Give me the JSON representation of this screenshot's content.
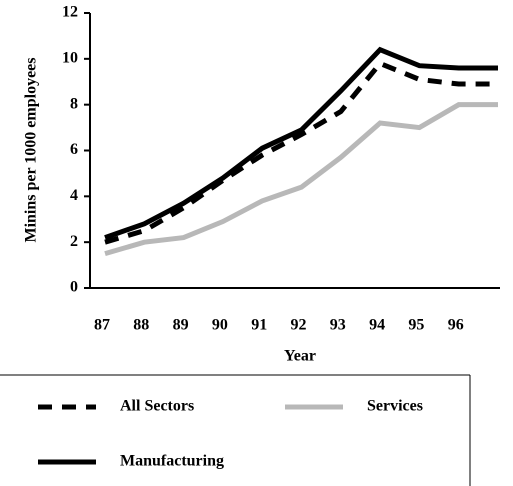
{
  "chart_data": {
    "type": "line",
    "y_label": "Minins per 1000 employees",
    "x_label": "Year",
    "categories": [
      "87",
      "88",
      "89",
      "90",
      "91",
      "92",
      "93",
      "94",
      "95",
      "96",
      null
    ],
    "series": [
      {
        "name": "All Sectors",
        "color": "#000000",
        "dash": true,
        "values": [
          2.0,
          2.5,
          3.5,
          4.7,
          5.8,
          6.7,
          7.7,
          9.8,
          9.1,
          8.9,
          8.9
        ]
      },
      {
        "name": "Services",
        "color": "#b8b8b8",
        "dash": false,
        "values": [
          1.5,
          2.0,
          2.2,
          2.9,
          3.8,
          4.4,
          5.7,
          7.2,
          7.0,
          8.0,
          8.0
        ]
      },
      {
        "name": "Manufacturing",
        "color": "#000000",
        "dash": false,
        "values": [
          2.2,
          2.8,
          3.7,
          4.8,
          6.1,
          6.9,
          8.6,
          10.4,
          9.7,
          9.6,
          9.6
        ]
      }
    ],
    "ylim": [
      0,
      12
    ],
    "yticks": [
      0,
      2,
      4,
      6,
      8,
      10,
      12
    ]
  }
}
